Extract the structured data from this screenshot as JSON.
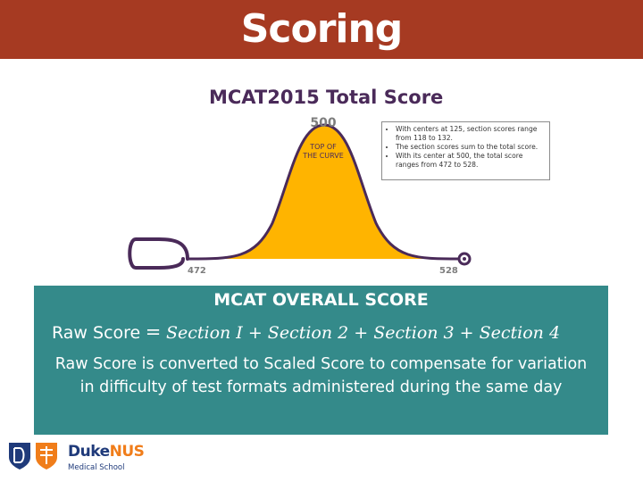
{
  "slide": {
    "title": "Scoring"
  },
  "figure": {
    "title": "MCAT2015 Total Score",
    "peak_value": "500",
    "peak_note": "TOP OF\nTHE CURVE",
    "min_value": "472",
    "max_value": "528",
    "notes": [
      "With centers at 125, section scores range from 118 to 132.",
      "The section scores sum to the total score.",
      "With its center at 500, the total score ranges from 472 to 528."
    ],
    "colors": {
      "curve_fill": "#ffb400",
      "curve_line": "#4a2a59"
    }
  },
  "panel": {
    "heading": "MCAT OVERALL SCORE",
    "formula_label": "Raw Score",
    "formula_eq": "=",
    "formula_terms": "Section I + Section 2 + Section 3 + Section 4",
    "description": "Raw Score is converted to Scaled Score to compensate for variation in difficulty of test formats administered during the same day",
    "color": "#348a8a"
  },
  "logo": {
    "brand_main": "Duke",
    "brand_accent": "NUS",
    "brand_sub": "Medical School"
  }
}
